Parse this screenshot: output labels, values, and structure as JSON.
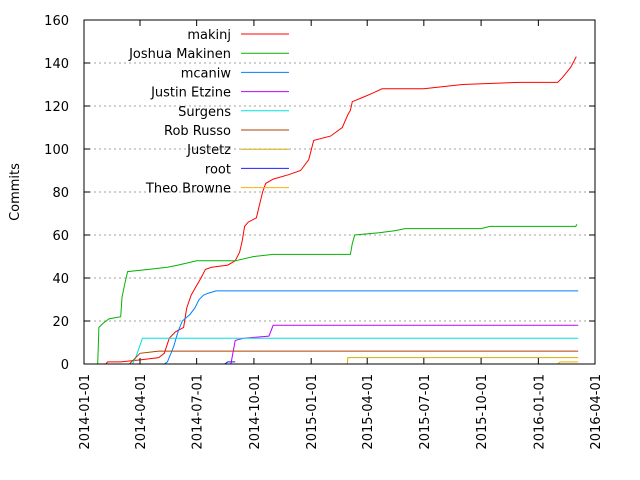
{
  "chart_data": {
    "type": "line",
    "title": "",
    "ylabel": "Commits",
    "xlabel": "",
    "ylim": [
      0,
      160
    ],
    "xlim": [
      "2014-01-01",
      "2016-04-01"
    ],
    "yticks": [
      0,
      20,
      40,
      60,
      80,
      100,
      120,
      140,
      160
    ],
    "xticks": [
      "2014-01-01",
      "2014-04-01",
      "2014-07-01",
      "2014-10-01",
      "2015-01-01",
      "2015-04-01",
      "2015-07-01",
      "2015-10-01",
      "2016-01-01",
      "2016-04-01"
    ],
    "grid": "horizontal-dotted",
    "legend_position": "top-left",
    "series": [
      {
        "name": "makinj",
        "color": "#ff0000",
        "points": [
          [
            "2014-02-05",
            0
          ],
          [
            "2014-02-08",
            1
          ],
          [
            "2014-03-01",
            1
          ],
          [
            "2014-04-03",
            2
          ],
          [
            "2014-05-01",
            3
          ],
          [
            "2014-05-10",
            5
          ],
          [
            "2014-05-18",
            12
          ],
          [
            "2014-05-28",
            15
          ],
          [
            "2014-06-10",
            17
          ],
          [
            "2014-06-15",
            26
          ],
          [
            "2014-06-22",
            32
          ],
          [
            "2014-06-30",
            36
          ],
          [
            "2014-07-08",
            40
          ],
          [
            "2014-07-15",
            44
          ],
          [
            "2014-07-25",
            45
          ],
          [
            "2014-08-20",
            46
          ],
          [
            "2014-09-01",
            48
          ],
          [
            "2014-09-08",
            52
          ],
          [
            "2014-09-12",
            57
          ],
          [
            "2014-09-16",
            64
          ],
          [
            "2014-09-22",
            66
          ],
          [
            "2014-10-05",
            68
          ],
          [
            "2014-10-15",
            80
          ],
          [
            "2014-10-20",
            84
          ],
          [
            "2014-11-01",
            86
          ],
          [
            "2014-11-25",
            88
          ],
          [
            "2014-12-15",
            90
          ],
          [
            "2014-12-28",
            95
          ],
          [
            "2015-01-05",
            104
          ],
          [
            "2015-02-01",
            106
          ],
          [
            "2015-02-20",
            110
          ],
          [
            "2015-03-01",
            116
          ],
          [
            "2015-03-05",
            118
          ],
          [
            "2015-03-08",
            122
          ],
          [
            "2015-03-25",
            124
          ],
          [
            "2015-04-10",
            126
          ],
          [
            "2015-04-25",
            128
          ],
          [
            "2015-07-01",
            128
          ],
          [
            "2015-08-01",
            129
          ],
          [
            "2015-09-01",
            130
          ],
          [
            "2015-12-01",
            131
          ],
          [
            "2016-02-01",
            131
          ],
          [
            "2016-02-08",
            133
          ],
          [
            "2016-02-22",
            138
          ],
          [
            "2016-03-02",
            143
          ]
        ]
      },
      {
        "name": "Joshua Makinen",
        "color": "#00b400",
        "points": [
          [
            "2014-01-23",
            0
          ],
          [
            "2014-01-25",
            17
          ],
          [
            "2014-02-01",
            19
          ],
          [
            "2014-02-10",
            21
          ],
          [
            "2014-03-01",
            22
          ],
          [
            "2014-03-03",
            31
          ],
          [
            "2014-03-08",
            38
          ],
          [
            "2014-03-12",
            43
          ],
          [
            "2014-04-15",
            44
          ],
          [
            "2014-05-15",
            45
          ],
          [
            "2014-06-01",
            46
          ],
          [
            "2014-07-01",
            48
          ],
          [
            "2014-09-01",
            48
          ],
          [
            "2014-10-01",
            50
          ],
          [
            "2014-11-01",
            51
          ],
          [
            "2015-03-05",
            51
          ],
          [
            "2015-03-08",
            56
          ],
          [
            "2015-03-12",
            60
          ],
          [
            "2015-04-20",
            61
          ],
          [
            "2015-05-15",
            62
          ],
          [
            "2015-06-01",
            63
          ],
          [
            "2015-10-01",
            63
          ],
          [
            "2015-10-15",
            64
          ],
          [
            "2016-03-01",
            64
          ],
          [
            "2016-03-03",
            65
          ]
        ]
      },
      {
        "name": "mcaniw",
        "color": "#0080ff",
        "points": [
          [
            "2014-05-10",
            0
          ],
          [
            "2014-05-15",
            1
          ],
          [
            "2014-05-25",
            8
          ],
          [
            "2014-06-01",
            15
          ],
          [
            "2014-06-08",
            20
          ],
          [
            "2014-06-20",
            23
          ],
          [
            "2014-06-28",
            26
          ],
          [
            "2014-07-05",
            30
          ],
          [
            "2014-07-12",
            32
          ],
          [
            "2014-07-20",
            33
          ],
          [
            "2014-08-01",
            34
          ],
          [
            "2016-03-05",
            34
          ]
        ]
      },
      {
        "name": "Justin Etzine",
        "color": "#c000ff",
        "points": [
          [
            "2014-08-25",
            0
          ],
          [
            "2014-09-01",
            11
          ],
          [
            "2014-09-15",
            12
          ],
          [
            "2014-10-25",
            13
          ],
          [
            "2014-11-01",
            18
          ],
          [
            "2016-03-05",
            18
          ]
        ]
      },
      {
        "name": "Surgens",
        "color": "#00e0e0",
        "points": [
          [
            "2014-03-20",
            0
          ],
          [
            "2014-03-25",
            3
          ],
          [
            "2014-04-05",
            12
          ],
          [
            "2016-03-05",
            12
          ]
        ]
      },
      {
        "name": "Rob Russo",
        "color": "#b04000",
        "points": [
          [
            "2014-03-15",
            0
          ],
          [
            "2014-04-01",
            5
          ],
          [
            "2014-05-01",
            6
          ],
          [
            "2016-03-05",
            6
          ]
        ]
      },
      {
        "name": "Justetz",
        "color": "#d0b000",
        "points": [
          [
            "2015-02-28",
            0
          ],
          [
            "2015-03-01",
            3
          ],
          [
            "2016-03-05",
            3
          ]
        ]
      },
      {
        "name": "root",
        "color": "#2020ff",
        "points": [
          [
            "2014-08-15",
            0
          ],
          [
            "2014-08-20",
            1
          ],
          [
            "2014-09-01",
            1
          ]
        ]
      },
      {
        "name": "Theo Browne",
        "color": "#ffb000",
        "points": [
          [
            "2016-02-01",
            0
          ],
          [
            "2016-02-05",
            1
          ],
          [
            "2016-03-05",
            1
          ]
        ]
      }
    ]
  }
}
